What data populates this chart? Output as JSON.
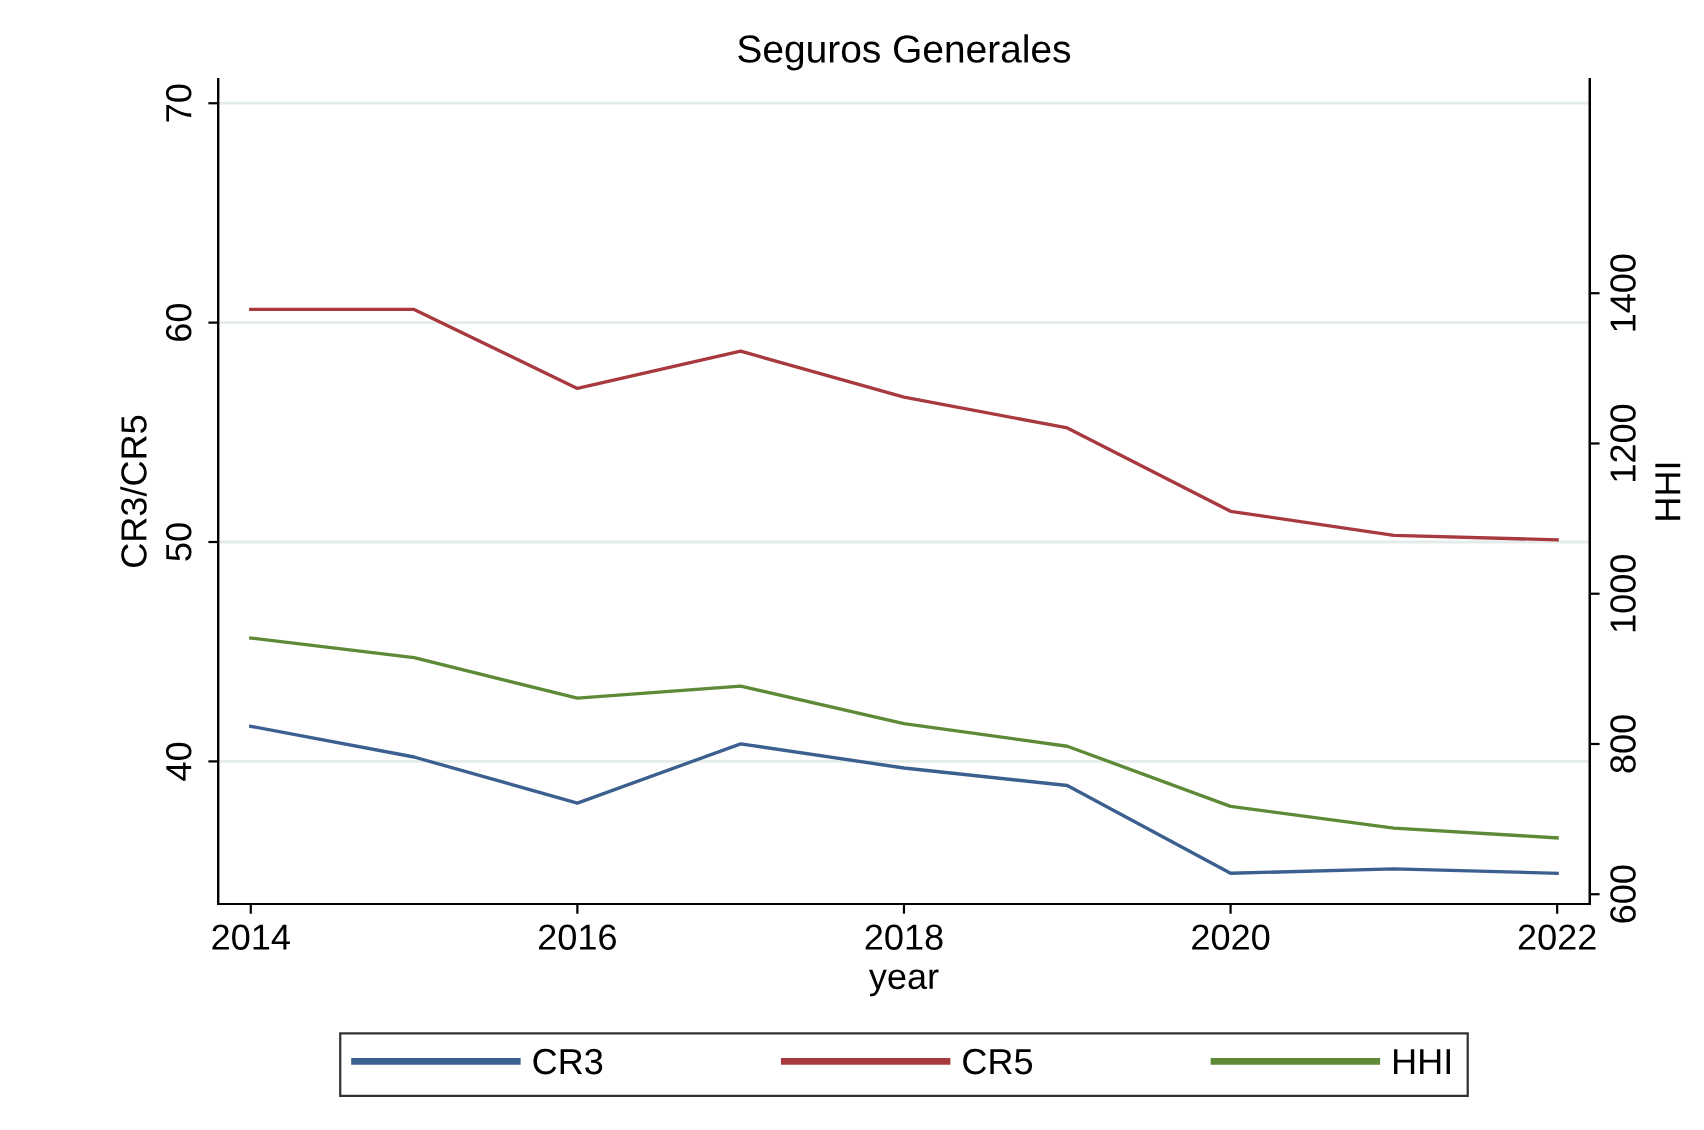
{
  "chart_data": {
    "type": "line",
    "title": "Seguros Generales",
    "xlabel": "year",
    "ylabel": "CR3/CR5",
    "y2label": "HHI",
    "x": [
      2014,
      2015,
      2016,
      2017,
      2018,
      2019,
      2020,
      2021,
      2022
    ],
    "series": [
      {
        "name": "CR3",
        "color": "#3b5f8f",
        "values": [
          41.6,
          40.2,
          38.1,
          40.8,
          39.7,
          38.9,
          34.9,
          35.1,
          34.9
        ]
      },
      {
        "name": "CR5",
        "color": "#a83a3f",
        "values": [
          60.6,
          60.6,
          57.0,
          58.7,
          56.6,
          55.2,
          51.4,
          50.3,
          50.1
        ]
      },
      {
        "name": "HHI",
        "color": "#5e8a38",
        "axis": "y2",
        "values": [
          941,
          915,
          861,
          877,
          827,
          797,
          717,
          688,
          675
        ]
      }
    ],
    "xlim": [
      2013.8,
      2022.2
    ],
    "xticks": [
      2014,
      2016,
      2018,
      2020,
      2022
    ],
    "ylim": [
      33.5,
      71.1
    ],
    "yticks": [
      40,
      50,
      60,
      70
    ],
    "y2lim": [
      587,
      1685
    ],
    "y2ticks": [
      600,
      800,
      1000,
      1200,
      1400
    ],
    "grid": "y",
    "legend": "bottom",
    "marker": "none",
    "line_style": "solid"
  }
}
